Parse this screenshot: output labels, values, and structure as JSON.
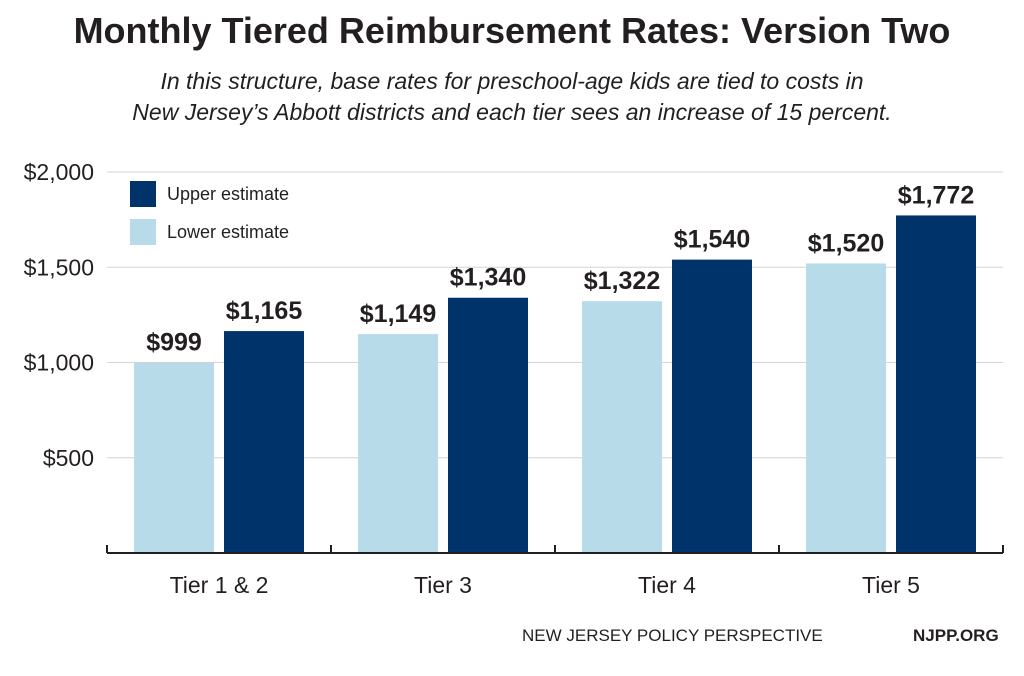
{
  "title": "Monthly Tiered Reimbursement Rates: Version Two",
  "subtitle": [
    "In this structure, base rates for preschool-age kids are tied to costs in",
    "New Jersey’s Abbott districts and each tier sees an increase of 15 percent."
  ],
  "footer": {
    "source": "NEW JERSEY POLICY PERSPECTIVE",
    "site": "NJPP.ORG"
  },
  "colors": {
    "upper": "#00336a",
    "lower": "#b8dbe9",
    "grid": "#d4d4d4",
    "axis": "#231f20"
  },
  "chart_data": {
    "type": "bar",
    "categories": [
      "Tier 1 & 2",
      "Tier 3",
      "Tier 4",
      "Tier 5"
    ],
    "series": [
      {
        "name": "Lower estimate",
        "values": [
          999,
          1149,
          1322,
          1520
        ],
        "labels": [
          "$999",
          "$1,149",
          "$1,322",
          "$1,520"
        ]
      },
      {
        "name": "Upper estimate",
        "values": [
          1165,
          1340,
          1540,
          1772
        ],
        "labels": [
          "$1,165",
          "$1,340",
          "$1,540",
          "$1,772"
        ]
      }
    ],
    "yticks": [
      500,
      1000,
      1500,
      2000
    ],
    "ytick_labels": [
      "$500",
      "$1,000",
      "$1,500",
      "$2,000"
    ],
    "ylim": [
      0,
      2000
    ],
    "grid": true,
    "legend": {
      "position": "top-left",
      "entries": [
        "Upper estimate",
        "Lower estimate"
      ]
    }
  }
}
